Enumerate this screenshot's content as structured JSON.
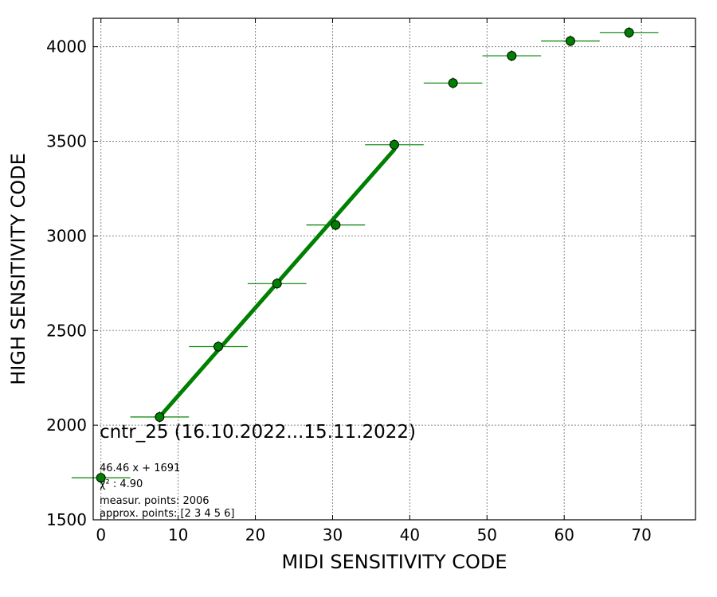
{
  "chart_data": {
    "type": "scatter",
    "xlabel": "MIDI SENSITIVITY CODE",
    "ylabel": "HIGH SENSITIVITY CODE",
    "xlim": [
      -1,
      77
    ],
    "ylim": [
      1500,
      4150
    ],
    "x_ticks": [
      0,
      10,
      20,
      30,
      40,
      50,
      60,
      70
    ],
    "y_ticks": [
      1500,
      2000,
      2500,
      3000,
      3500,
      4000
    ],
    "grid": true,
    "color": "#008000",
    "points": [
      {
        "x": 0,
        "y": 1722,
        "xerr": 3.8
      },
      {
        "x": 7.6,
        "y": 2043,
        "xerr": 3.8
      },
      {
        "x": 15.2,
        "y": 2415,
        "xerr": 3.8
      },
      {
        "x": 22.8,
        "y": 2748,
        "xerr": 3.8
      },
      {
        "x": 30.4,
        "y": 3058,
        "xerr": 3.8
      },
      {
        "x": 38.0,
        "y": 3482,
        "xerr": 3.8
      },
      {
        "x": 45.6,
        "y": 3808,
        "xerr": 3.8
      },
      {
        "x": 53.2,
        "y": 3952,
        "xerr": 3.8
      },
      {
        "x": 60.8,
        "y": 4030,
        "xerr": 3.8
      },
      {
        "x": 68.4,
        "y": 4075,
        "xerr": 3.8
      }
    ],
    "fit": {
      "slope": 46.46,
      "intercept": 1691,
      "x_range": [
        7.6,
        38.0
      ]
    },
    "annotation": {
      "title": "cntr_25 (16.10.2022...15.11.2022)",
      "fit_label": "46.46 x + 1691",
      "chi2_label": "χ² : 4.90",
      "measur_label": "measur. points: 2006",
      "approx_label": "approx. points: [2 3 4 5 6]"
    }
  }
}
